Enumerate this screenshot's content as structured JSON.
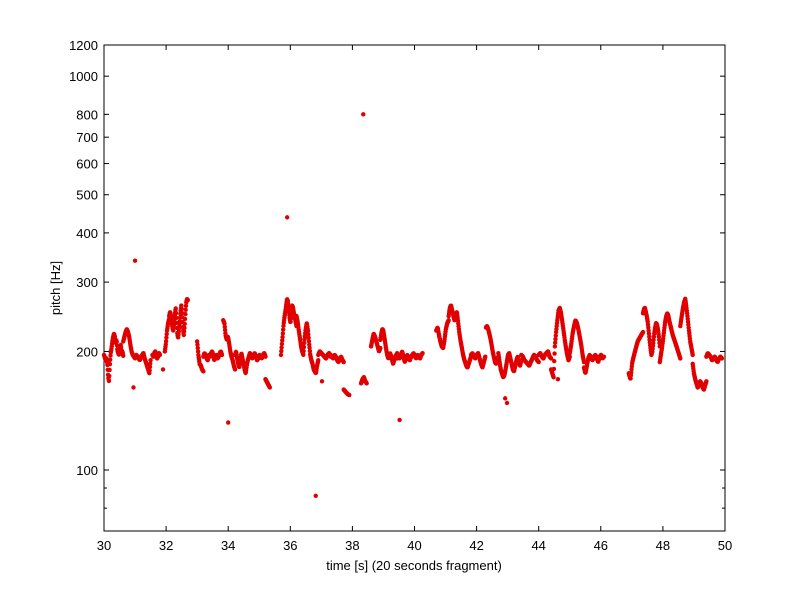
{
  "chart_data": {
    "type": "scatter",
    "title": "",
    "xlabel": "time [s] (20 seconds fragment)",
    "ylabel": "pitch [Hz]",
    "xlim": [
      30,
      50
    ],
    "ylim": [
      70,
      1200
    ],
    "y_scale": "log",
    "grid": false,
    "marker_color": "#e00000",
    "x_ticks": [
      30,
      32,
      34,
      36,
      38,
      40,
      42,
      44,
      46,
      48,
      50
    ],
    "y_ticks": [
      100,
      200,
      300,
      400,
      500,
      600,
      700,
      800,
      1000,
      1200
    ],
    "y_minor_ticks": [
      80,
      90
    ],
    "series": [
      {
        "segments": [
          [
            30.0,
            30.62,
            [
              196,
              193,
              190,
              192,
              186,
              172,
              168,
              185,
              198,
              204,
              212,
              218,
              222,
              218,
              210,
              214,
              202,
              198,
              196,
              202,
              208,
              200,
              200,
              195
            ]
          ],
          [
            30.62,
            31.5,
            [
              212,
              218,
              224,
              228,
              224,
              218,
              208,
              200,
              196,
              194,
              192,
              196,
              194,
              192,
              190,
              194,
              196,
              198,
              192,
              188,
              184,
              180,
              176,
              190
            ]
          ],
          [
            31.56,
            31.8,
            [
              196,
              194,
              198,
              200,
              196,
              192,
              194,
              198,
              196
            ]
          ],
          [
            31.96,
            32.1,
            [
              200,
              210,
              226,
              236,
              242
            ]
          ],
          [
            32.1,
            32.7,
            [
              246,
              252,
              248,
              238,
              230,
              226,
              236,
              248,
              258,
              240,
              222,
              216,
              226,
              238,
              252,
              262,
              246,
              228,
              220,
              232,
              250,
              266,
              272,
              270
            ]
          ],
          [
            33.0,
            33.2,
            [
              212,
              196,
              186,
              184,
              180,
              178
            ]
          ],
          [
            33.2,
            33.8,
            [
              194,
              198,
              196,
              192,
              190,
              196,
              194,
              198,
              200,
              196,
              190,
              194,
              196,
              192,
              194,
              198,
              200,
              196
            ]
          ],
          [
            33.84,
            34.22,
            [
              240,
              236,
              220,
              214,
              218,
              210,
              200,
              194,
              190,
              184,
              180
            ]
          ],
          [
            34.22,
            34.7,
            [
              196,
              200,
              192,
              186,
              182,
              190,
              198,
              192,
              186,
              180,
              176,
              184,
              190,
              194,
              198
            ]
          ],
          [
            34.7,
            35.2,
            [
              196,
              194,
              192,
              196,
              198,
              194,
              190,
              192,
              196,
              194,
              192,
              196,
              198,
              194
            ]
          ],
          [
            35.2,
            35.34,
            [
              170,
              166,
              162
            ]
          ],
          [
            35.7,
            36.2,
            [
              196,
              208,
              220,
              234,
              244,
              252,
              262,
              272,
              268,
              256,
              244,
              236,
              248,
              262,
              258,
              250,
              244,
              238,
              232
            ]
          ],
          [
            36.2,
            36.9,
            [
              246,
              238,
              226,
              216,
              206,
              200,
              196,
              214,
              228,
              236,
              226,
              210,
              196,
              190,
              186,
              180,
              178,
              176,
              184,
              190
            ]
          ],
          [
            36.9,
            37.3,
            [
              196,
              200,
              198,
              196,
              194,
              192,
              196,
              198,
              194
            ]
          ],
          [
            37.3,
            37.72,
            [
              196,
              194,
              192,
              196,
              194,
              190,
              188,
              192,
              194,
              190,
              188
            ]
          ],
          [
            37.72,
            37.9,
            [
              160,
              158,
              156,
              155
            ]
          ],
          [
            38.28,
            38.46,
            [
              166,
              170,
              172,
              168,
              166
            ]
          ],
          [
            38.6,
            38.9,
            [
              206,
              214,
              222,
              218,
              212,
              206,
              200,
              204
            ]
          ],
          [
            38.9,
            39.44,
            [
              214,
              222,
              228,
              226,
              218,
              210,
              202,
              196,
              192,
              194,
              198,
              194,
              190,
              186,
              190,
              194,
              196,
              192
            ]
          ],
          [
            39.44,
            40.26,
            [
              198,
              194,
              192,
              196,
              200,
              194,
              188,
              192,
              196,
              192,
              190,
              194,
              196,
              198,
              194,
              192,
              196,
              194,
              192,
              196,
              198
            ]
          ],
          [
            40.7,
            41.1,
            [
              226,
              230,
              220,
              212,
              206,
              204,
              214,
              228,
              236,
              240
            ]
          ],
          [
            41.1,
            41.82,
            [
              246,
              258,
              262,
              254,
              246,
              240,
              248,
              252,
              238,
              224,
              214,
              206,
              198,
              192,
              188,
              184,
              182,
              186,
              190,
              194
            ]
          ],
          [
            41.82,
            42.28,
            [
              196,
              198,
              194,
              192,
              196,
              198,
              192,
              186,
              182,
              188,
              194
            ]
          ],
          [
            42.3,
            42.7,
            [
              230,
              232,
              228,
              222,
              216,
              208,
              200,
              194,
              188,
              186,
              190,
              194
            ]
          ],
          [
            42.7,
            43.44,
            [
              198,
              188,
              180,
              176,
              172,
              174,
              180,
              188,
              196,
              198,
              192,
              186,
              180,
              178,
              184,
              190,
              194,
              188,
              184,
              190
            ]
          ],
          [
            43.44,
            44.0,
            [
              196,
              194,
              190,
              188,
              186,
              184,
              188,
              192,
              196,
              194,
              190,
              188
            ]
          ],
          [
            44.0,
            44.4,
            [
              196,
              198,
              194,
              192,
              196,
              198,
              200,
              194,
              192
            ]
          ],
          [
            44.4,
            45.0,
            [
              180,
              176,
              172,
              206,
              224,
              240,
              254,
              258,
              250,
              238,
              226,
              214,
              204,
              196,
              190,
              194
            ]
          ],
          [
            45.0,
            45.46,
            [
              198,
              208,
              222,
              232,
              240,
              236,
              228,
              218,
              208,
              196,
              188
            ]
          ],
          [
            45.46,
            46.1,
            [
              182,
              176,
              184,
              192,
              196,
              192,
              190,
              194,
              196,
              192,
              188,
              194,
              196,
              192,
              194
            ]
          ],
          [
            46.9,
            47.36,
            [
              176,
              170,
              188,
              196,
              204,
              212,
              216,
              220,
              224
            ]
          ],
          [
            47.36,
            47.9,
            [
              250,
              256,
              258,
              252,
              246,
              238,
              226,
              214,
              204,
              196,
              200,
              210,
              222,
              230,
              236,
              234,
              228,
              218,
              206
            ]
          ],
          [
            47.9,
            48.56,
            [
              188,
              196,
              204,
              214,
              226,
              238,
              246,
              250,
              246,
              238,
              232,
              226,
              220,
              216,
              212,
              208,
              204,
              200,
              196,
              192
            ]
          ],
          [
            48.56,
            48.96,
            [
              232,
              244,
              256,
              266,
              272,
              258,
              242,
              226,
              212,
              204,
              196
            ]
          ],
          [
            48.96,
            49.4,
            [
              186,
              176,
              170,
              166,
              162,
              164,
              168,
              166,
              162,
              160,
              164,
              168
            ]
          ],
          [
            49.4,
            49.9,
            [
              194,
              198,
              196,
              194,
              190,
              192,
              194,
              190,
              188,
              192,
              194,
              192
            ]
          ]
        ],
        "outliers": [
          [
            30.95,
            162
          ],
          [
            31.0,
            340
          ],
          [
            31.9,
            180
          ],
          [
            34.0,
            132
          ],
          [
            35.9,
            438
          ],
          [
            36.82,
            86
          ],
          [
            37.02,
            168
          ],
          [
            38.35,
            800
          ],
          [
            39.52,
            134
          ],
          [
            42.92,
            152
          ],
          [
            42.98,
            148
          ],
          [
            44.62,
            170
          ]
        ]
      }
    ]
  }
}
